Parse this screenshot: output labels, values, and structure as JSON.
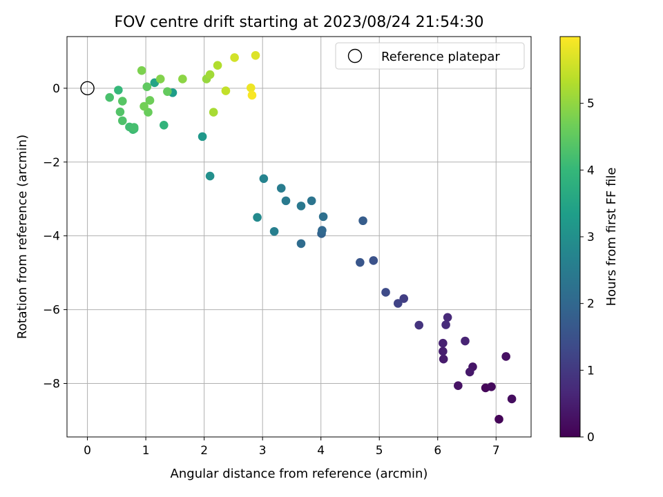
{
  "chart_data": {
    "type": "scatter",
    "title": "FOV centre drift starting at 2023/08/24 21:54:30",
    "xlabel": "Angular distance from reference (arcmin)",
    "ylabel": "Rotation from reference (arcmin)",
    "xlim": [
      -0.35,
      7.6
    ],
    "ylim": [
      -9.45,
      1.4
    ],
    "xticks": [
      0,
      1,
      2,
      3,
      4,
      5,
      6,
      7
    ],
    "yticks": [
      0,
      -2,
      -4,
      -6,
      -8
    ],
    "grid": true,
    "legend": {
      "position": "top-right",
      "entries": [
        "Reference platepar"
      ]
    },
    "reference_point": {
      "x": 0,
      "y": 0,
      "label": "Reference platepar"
    },
    "colorbar": {
      "label": "Hours from first FF file",
      "range": [
        0,
        6
      ],
      "ticks": [
        0,
        1,
        2,
        3,
        4,
        5
      ],
      "colormap": "viridis"
    },
    "points": [
      {
        "x": 7.05,
        "y": -8.97,
        "c": 0.05
      },
      {
        "x": 6.82,
        "y": -8.12,
        "c": 0.1
      },
      {
        "x": 6.92,
        "y": -8.09,
        "c": 0.15
      },
      {
        "x": 7.27,
        "y": -8.42,
        "c": 0.2
      },
      {
        "x": 7.17,
        "y": -7.27,
        "c": 0.25
      },
      {
        "x": 6.35,
        "y": -8.06,
        "c": 0.3
      },
      {
        "x": 6.6,
        "y": -7.55,
        "c": 0.35
      },
      {
        "x": 6.55,
        "y": -7.69,
        "c": 0.4
      },
      {
        "x": 6.1,
        "y": -7.34,
        "c": 0.45
      },
      {
        "x": 6.09,
        "y": -7.13,
        "c": 0.5
      },
      {
        "x": 6.09,
        "y": -6.91,
        "c": 0.55
      },
      {
        "x": 6.47,
        "y": -6.85,
        "c": 0.6
      },
      {
        "x": 6.17,
        "y": -6.21,
        "c": 0.7
      },
      {
        "x": 6.14,
        "y": -6.41,
        "c": 0.75
      },
      {
        "x": 5.68,
        "y": -6.42,
        "c": 0.9
      },
      {
        "x": 5.42,
        "y": -5.7,
        "c": 1.1
      },
      {
        "x": 5.32,
        "y": -5.83,
        "c": 1.2
      },
      {
        "x": 5.11,
        "y": -5.53,
        "c": 1.35
      },
      {
        "x": 4.9,
        "y": -4.67,
        "c": 1.5
      },
      {
        "x": 4.67,
        "y": -4.72,
        "c": 1.6
      },
      {
        "x": 4.72,
        "y": -3.59,
        "c": 1.75
      },
      {
        "x": 4.01,
        "y": -3.94,
        "c": 1.9
      },
      {
        "x": 4.02,
        "y": -3.85,
        "c": 2.0
      },
      {
        "x": 3.66,
        "y": -4.21,
        "c": 2.1
      },
      {
        "x": 4.04,
        "y": -3.48,
        "c": 2.2
      },
      {
        "x": 3.84,
        "y": -3.05,
        "c": 2.3
      },
      {
        "x": 3.66,
        "y": -3.19,
        "c": 2.4
      },
      {
        "x": 3.4,
        "y": -3.05,
        "c": 2.45
      },
      {
        "x": 3.32,
        "y": -2.71,
        "c": 2.5
      },
      {
        "x": 3.2,
        "y": -3.88,
        "c": 2.6
      },
      {
        "x": 3.02,
        "y": -2.45,
        "c": 2.7
      },
      {
        "x": 2.91,
        "y": -3.5,
        "c": 2.85
      },
      {
        "x": 2.1,
        "y": -2.38,
        "c": 3.0
      },
      {
        "x": 1.97,
        "y": -1.31,
        "c": 3.2
      },
      {
        "x": 1.46,
        "y": -0.12,
        "c": 3.3
      },
      {
        "x": 1.15,
        "y": 0.15,
        "c": 3.5
      },
      {
        "x": 1.31,
        "y": -1.0,
        "c": 3.9
      },
      {
        "x": 0.53,
        "y": -0.05,
        "c": 4.0
      },
      {
        "x": 0.8,
        "y": -1.1,
        "c": 4.05
      },
      {
        "x": 0.78,
        "y": -1.12,
        "c": 4.1
      },
      {
        "x": 0.72,
        "y": -1.05,
        "c": 4.15
      },
      {
        "x": 0.8,
        "y": -1.06,
        "c": 4.2
      },
      {
        "x": 0.38,
        "y": -0.25,
        "c": 4.25
      },
      {
        "x": 0.6,
        "y": -0.88,
        "c": 4.3
      },
      {
        "x": 0.56,
        "y": -0.64,
        "c": 4.35
      },
      {
        "x": 0.6,
        "y": -0.35,
        "c": 4.4
      },
      {
        "x": 1.02,
        "y": 0.04,
        "c": 4.5
      },
      {
        "x": 1.37,
        "y": -0.09,
        "c": 4.55
      },
      {
        "x": 1.04,
        "y": -0.65,
        "c": 4.6
      },
      {
        "x": 1.07,
        "y": -0.33,
        "c": 4.65
      },
      {
        "x": 0.97,
        "y": -0.49,
        "c": 4.7
      },
      {
        "x": 0.93,
        "y": 0.48,
        "c": 4.8
      },
      {
        "x": 1.25,
        "y": 0.25,
        "c": 4.85
      },
      {
        "x": 1.63,
        "y": 0.25,
        "c": 4.95
      },
      {
        "x": 2.04,
        "y": 0.25,
        "c": 5.05
      },
      {
        "x": 2.1,
        "y": 0.37,
        "c": 5.15
      },
      {
        "x": 2.16,
        "y": -0.65,
        "c": 5.2
      },
      {
        "x": 2.23,
        "y": 0.62,
        "c": 5.3
      },
      {
        "x": 2.37,
        "y": -0.07,
        "c": 5.45
      },
      {
        "x": 2.52,
        "y": 0.83,
        "c": 5.6
      },
      {
        "x": 2.88,
        "y": 0.89,
        "c": 5.7
      },
      {
        "x": 2.8,
        "y": 0.01,
        "c": 5.85
      },
      {
        "x": 2.82,
        "y": -0.19,
        "c": 5.95
      }
    ]
  }
}
